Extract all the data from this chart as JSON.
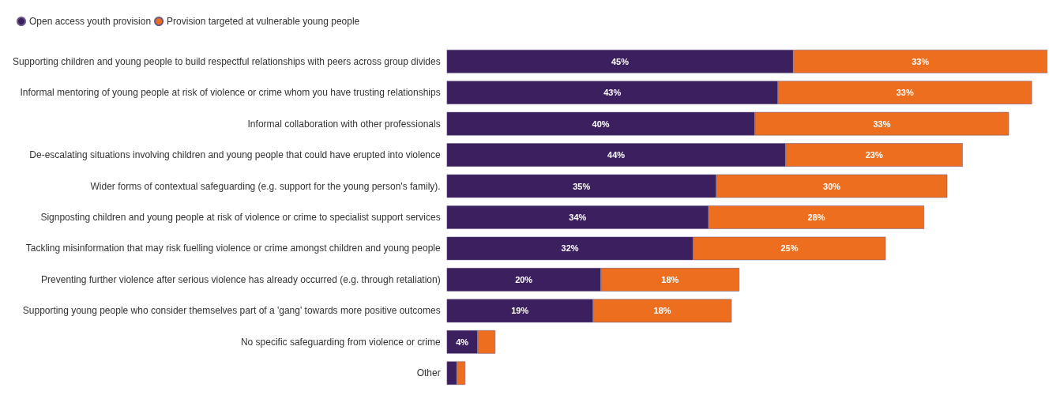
{
  "chart_data": {
    "type": "bar",
    "orientation": "horizontal",
    "stacked": true,
    "legend": "top left",
    "marker": "circle",
    "categories": [
      "Supporting children and young people to build respectful relationships with peers across group divides",
      "Informal mentoring of young people at risk of violence or crime whom you have trusting relationships",
      "Informal collaboration with other professionals",
      "De-escalating situations involving children and young people that could have erupted into violence",
      "Wider forms of contextual safeguarding (e.g. support for the young person's family).",
      "Signposting children and young people at risk of violence or crime to specialist support services",
      "Tackling misinformation that may risk fuelling violence or crime amongst children and young people",
      "Preventing further violence after serious violence has already occurred (e.g. through retaliation)",
      "Supporting young people who consider themselves part of a 'gang' towards more positive outcomes",
      "No specific safeguarding from violence or crime",
      "Other"
    ],
    "series": [
      {
        "name": "Open access youth provision",
        "color": "#3b1f5e",
        "values": [
          45,
          43,
          40,
          44,
          35,
          34,
          32,
          20,
          19,
          4,
          1.3
        ],
        "value_labels": [
          "45%",
          "43%",
          "40%",
          "44%",
          "35%",
          "34%",
          "32%",
          "20%",
          "19%",
          "4%",
          null
        ]
      },
      {
        "name": "Provision targeted at vulnerable young people",
        "color": "#ec6e1e",
        "values": [
          33,
          33,
          33,
          23,
          30,
          28,
          25,
          18,
          18,
          2.3,
          1.1
        ],
        "value_labels": [
          "33%",
          "33%",
          "33%",
          "23%",
          "30%",
          "28%",
          "25%",
          "18%",
          "18%",
          null,
          null
        ]
      }
    ]
  }
}
